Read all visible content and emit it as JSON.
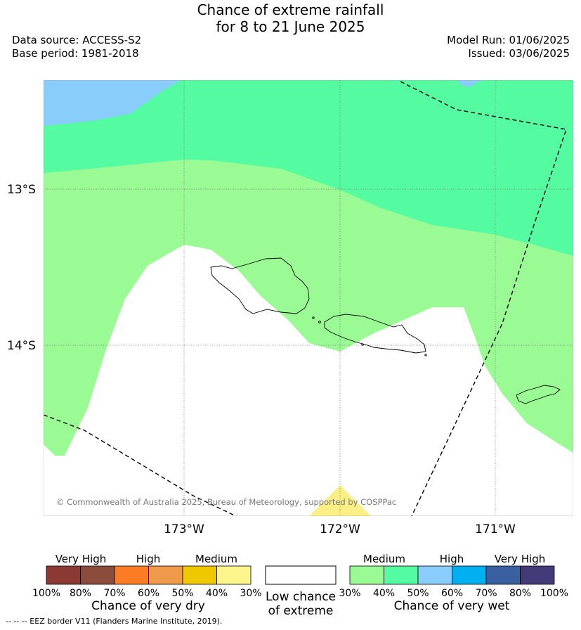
{
  "title": {
    "line1": "Chance of extreme rainfall",
    "line2": "for 8 to 21 June 2025"
  },
  "meta": {
    "data_source": "Data source: ACCESS-S2",
    "base_period": "Base period: 1981-2018",
    "model_run": "Model Run: 01/06/2025",
    "issued": "Issued: 03/06/2025"
  },
  "map": {
    "lat_labels": [
      "13°S",
      "14°S"
    ],
    "lon_labels": [
      "173°W",
      "172°W",
      "171°W"
    ],
    "copyright": "© Commonwealth of Australia 2025, Bureau of Meteorology, supported by COSPPac",
    "colors": {
      "ocean_low": "#ffffff",
      "wet_medium_30_40": "#9afb94",
      "wet_medium_40_50": "#55fba0",
      "wet_high_50_60": "#88cdfb",
      "dry_medium_30_40": "#fbef85"
    }
  },
  "legend": {
    "dry": {
      "headers": [
        "Very High",
        "High",
        "Medium"
      ],
      "colors": [
        "#8b3a33",
        "#8c4c3d",
        "#fb7c23",
        "#ef9a4b",
        "#f0c800",
        "#fbf58a"
      ],
      "ticks": [
        "100%",
        "80%",
        "70%",
        "60%",
        "50%",
        "40%",
        "30%"
      ],
      "caption": "Chance of very dry"
    },
    "low": {
      "caption_line1": "Low chance",
      "caption_line2": "of extreme",
      "color": "#ffffff"
    },
    "wet": {
      "headers": [
        "Medium",
        "High",
        "Very High"
      ],
      "colors": [
        "#9afb94",
        "#55fba0",
        "#88cdfb",
        "#00b0f0",
        "#3a60a0",
        "#433b78"
      ],
      "ticks": [
        "30%",
        "40%",
        "50%",
        "60%",
        "70%",
        "80%",
        "100%"
      ],
      "caption": "Chance of very wet"
    }
  },
  "footnote": "--  --  -- EEZ border V11 (Flanders Marine Institute, 2019)."
}
